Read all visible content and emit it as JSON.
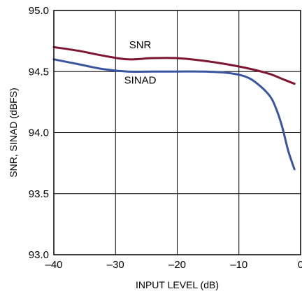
{
  "chart_data": {
    "type": "line",
    "title": "",
    "xlabel": "INPUT LEVEL (dB)",
    "ylabel": "SNR, SINAD (dBFS)",
    "xlim": [
      -40,
      0
    ],
    "ylim": [
      93.0,
      95.0
    ],
    "x_ticks": [
      -40,
      -30,
      -20,
      -10,
      0
    ],
    "x_tick_labels": [
      "–40",
      "–30",
      "–20",
      "–10",
      "0"
    ],
    "y_ticks": [
      93.0,
      93.5,
      94.0,
      94.5,
      95.0
    ],
    "y_tick_labels": [
      "93.0",
      "93.5",
      "94.0",
      "94.5",
      "95.0"
    ],
    "grid": true,
    "legend": "none",
    "series": [
      {
        "name": "SNR",
        "color": "#7e1632",
        "label_at": [
          -26,
          94.69
        ],
        "x": [
          -40,
          -36,
          -32,
          -28,
          -24,
          -20,
          -16,
          -12,
          -8,
          -5,
          -3,
          -1
        ],
        "y": [
          94.7,
          94.67,
          94.63,
          94.6,
          94.61,
          94.61,
          94.59,
          94.56,
          94.52,
          94.48,
          94.44,
          94.4
        ]
      },
      {
        "name": "SINAD",
        "color": "#3a55a0",
        "label_at": [
          -26,
          94.4
        ],
        "x": [
          -40,
          -36,
          -32,
          -28,
          -24,
          -20,
          -16,
          -12,
          -9,
          -7,
          -5,
          -4,
          -3,
          -2,
          -1
        ],
        "y": [
          94.6,
          94.56,
          94.52,
          94.5,
          94.5,
          94.5,
          94.5,
          94.49,
          94.46,
          94.4,
          94.3,
          94.2,
          94.05,
          93.85,
          93.7
        ]
      }
    ]
  }
}
